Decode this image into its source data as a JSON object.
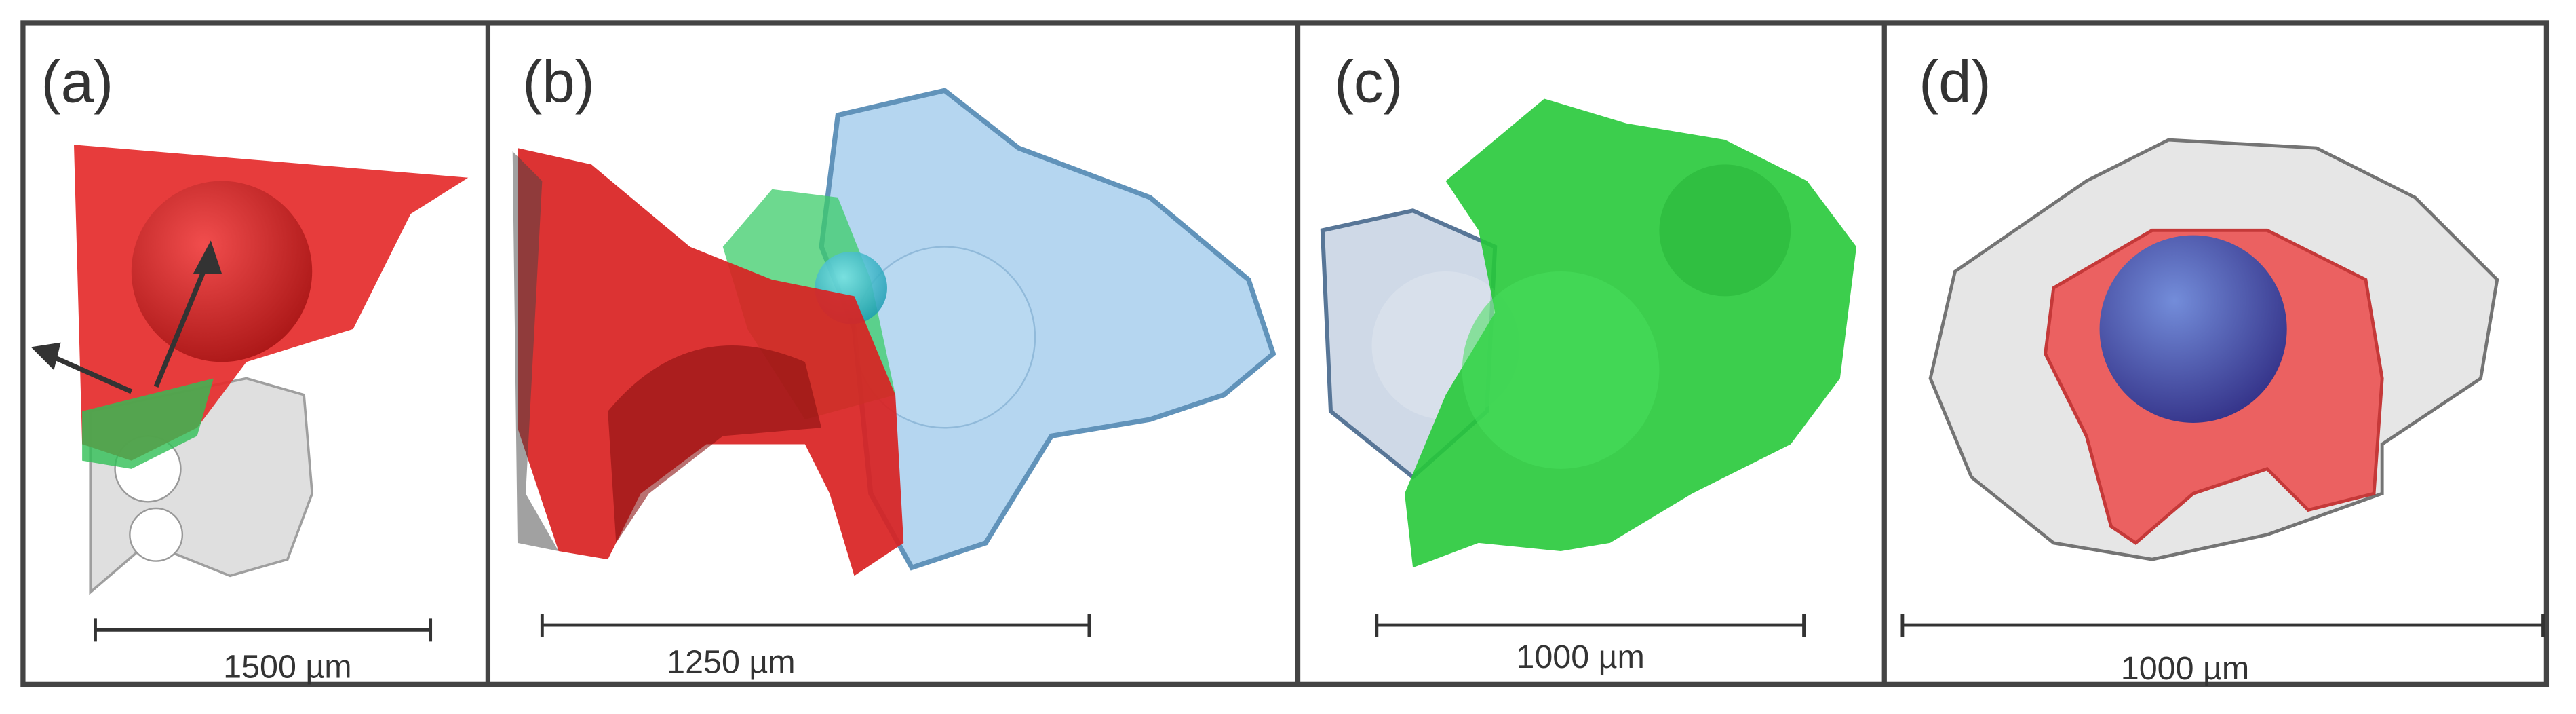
{
  "panels": [
    {
      "label": "(a)",
      "scale_bar": "1500 µm"
    },
    {
      "label": "(b)",
      "scale_bar": "1250 µm"
    },
    {
      "label": "(c)",
      "scale_bar": "1000 µm"
    },
    {
      "label": "(d)",
      "scale_bar": "1000 µm"
    }
  ]
}
